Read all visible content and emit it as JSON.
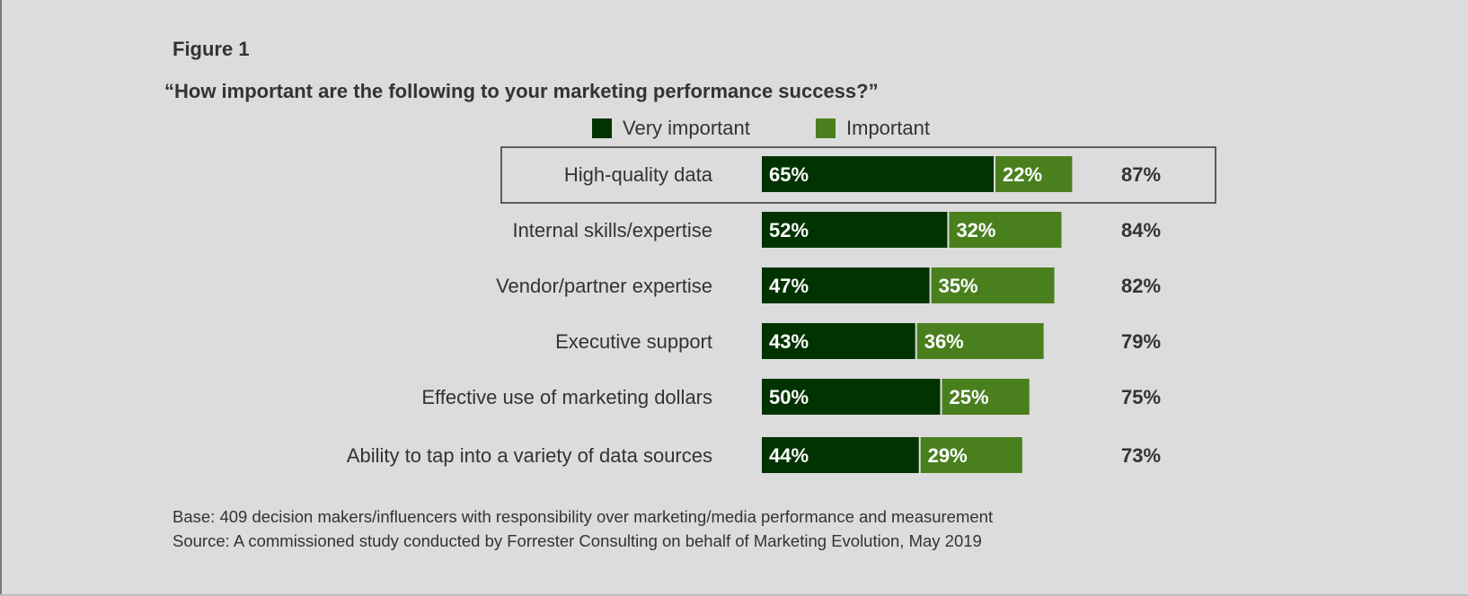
{
  "figure_label": "Figure 1",
  "question": "“How important are the following to your marketing performance success?”",
  "colors": {
    "very_important": "#003300",
    "important": "#4a7f1e",
    "highlight_border": "#333333"
  },
  "chart_data": {
    "type": "bar",
    "orientation": "horizontal",
    "stacked": true,
    "categories": [
      "High-quality data",
      "Internal skills/expertise",
      "Vendor/partner expertise",
      "Executive support",
      "Effective use of marketing dollars",
      "Ability to tap into a variety of data sources"
    ],
    "series": [
      {
        "name": "Very important",
        "values": [
          65,
          52,
          47,
          43,
          50,
          44
        ]
      },
      {
        "name": "Important",
        "values": [
          22,
          32,
          35,
          36,
          25,
          29
        ]
      }
    ],
    "totals": [
      87,
      84,
      82,
      79,
      75,
      73
    ],
    "value_labels": {
      "very_important": [
        "65%",
        "52%",
        "47%",
        "43%",
        "50%",
        "44%"
      ],
      "important": [
        "22%",
        "32%",
        "35%",
        "36%",
        "25%",
        "29%"
      ],
      "totals": [
        "87%",
        "84%",
        "82%",
        "79%",
        "75%",
        "73%"
      ]
    },
    "highlighted_category": "High-quality data",
    "legend_position": "top",
    "grid": false
  },
  "footnotes": {
    "base": "Base: 409 decision makers/influencers with responsibility over marketing/media performance and measurement",
    "source": "Source: A commissioned study conducted by Forrester Consulting on behalf of Marketing Evolution, May 2019"
  }
}
